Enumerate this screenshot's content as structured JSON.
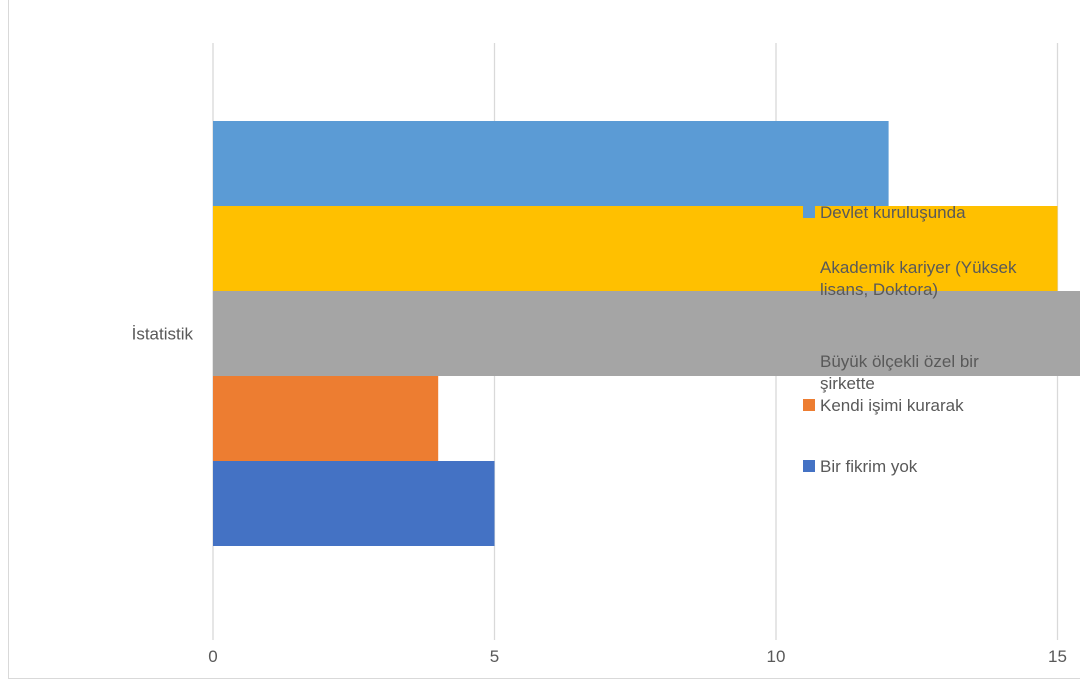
{
  "chart_data": {
    "type": "bar",
    "orientation": "horizontal",
    "title": "",
    "xlabel": "",
    "ylabel": "",
    "categories": [
      "İstatistik"
    ],
    "xlim": [
      0,
      20
    ],
    "xticks": [
      0,
      5,
      10,
      15,
      20
    ],
    "grid": true,
    "legend_position": "right",
    "series": [
      {
        "name": "Devlet kuruluşunda",
        "values": [
          12
        ],
        "color": "#5B9BD5"
      },
      {
        "name": "Akademik kariyer (Yüksek lisans, Doktora)",
        "legend_lines": [
          "Akademik kariyer (Yüksek",
          "lisans, Doktora)"
        ],
        "values": [
          15
        ],
        "color": "#FFC000"
      },
      {
        "name": "Büyük ölçekli özel bir şirkette",
        "legend_lines": [
          "Büyük ölçekli özel bir",
          "şirkette"
        ],
        "values": [
          17
        ],
        "color": "#A5A5A5"
      },
      {
        "name": "Kendi işimi kurarak",
        "values": [
          4
        ],
        "color": "#ED7D31"
      },
      {
        "name": "Bir fikrim yok",
        "values": [
          5
        ],
        "color": "#4472C4"
      }
    ]
  }
}
